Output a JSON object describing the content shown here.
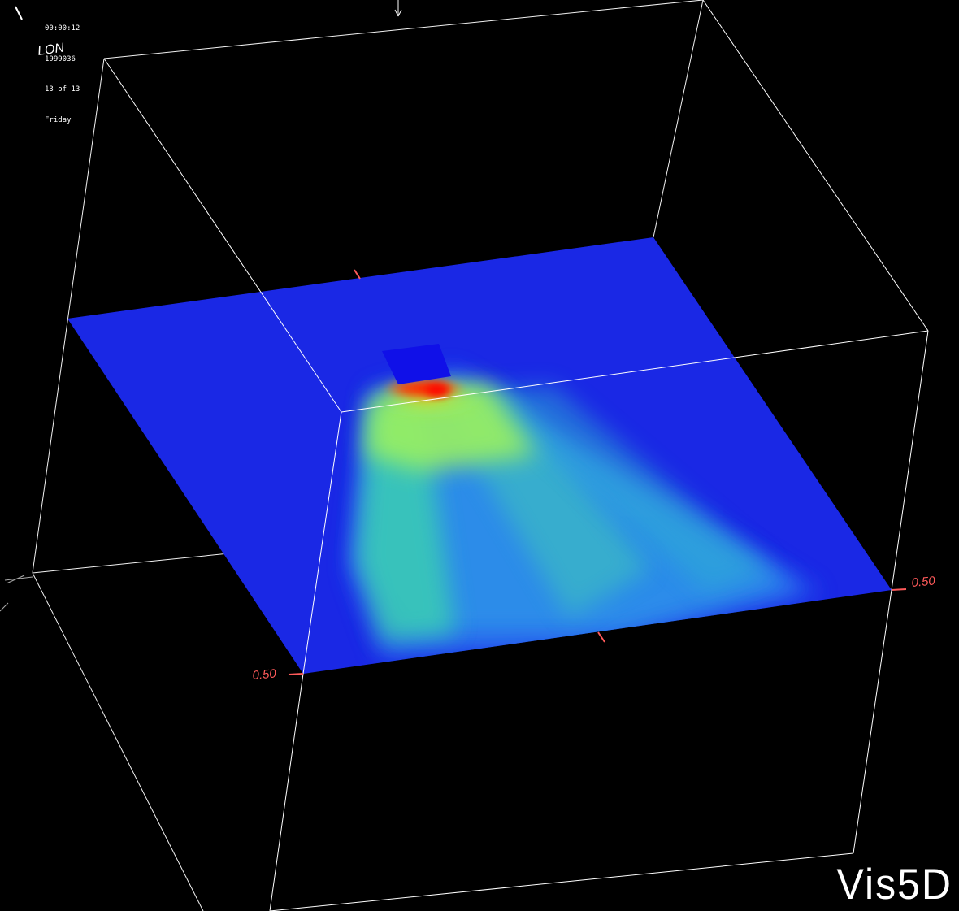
{
  "hud": {
    "time": "00:00:12",
    "date": "1999036",
    "step": "13 of 13",
    "weekday": "Friday",
    "axis_label": "LON"
  },
  "axes": {
    "left_tick_label": "0.50",
    "right_tick_label": "0.50"
  },
  "brand": "Vis5D",
  "colors": {
    "background": "#000000",
    "box_lines": "#ffffff",
    "tick_color": "#ff5a5a",
    "plane_base": "#1a24e4"
  }
}
